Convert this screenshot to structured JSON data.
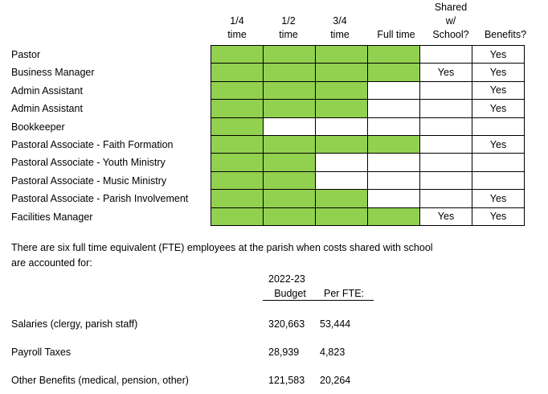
{
  "columns": [
    {
      "line1": "",
      "line2": "1/4",
      "line3": "time"
    },
    {
      "line1": "",
      "line2": "1/2",
      "line3": "time"
    },
    {
      "line1": "",
      "line2": "3/4",
      "line3": "time"
    },
    {
      "line1": "",
      "line2": "",
      "line3": "Full time"
    },
    {
      "line1": "Shared",
      "line2": "w/",
      "line3": "School?"
    },
    {
      "line1": "",
      "line2": "",
      "line3": "Benefits?"
    }
  ],
  "rows": [
    {
      "role": "Pastor",
      "fill": [
        1,
        1,
        1,
        1,
        0,
        0
      ],
      "shared": "",
      "benefits": "Yes"
    },
    {
      "role": "Business Manager",
      "fill": [
        1,
        1,
        1,
        1,
        0,
        0
      ],
      "shared": "Yes",
      "benefits": "Yes"
    },
    {
      "role": "Admin Assistant",
      "fill": [
        1,
        1,
        1,
        0,
        0,
        0
      ],
      "shared": "",
      "benefits": "Yes"
    },
    {
      "role": "Admin Assistant",
      "fill": [
        1,
        1,
        1,
        0,
        0,
        0
      ],
      "shared": "",
      "benefits": "Yes"
    },
    {
      "role": "Bookkeeper",
      "fill": [
        1,
        0,
        0,
        0,
        0,
        0
      ],
      "shared": "",
      "benefits": ""
    },
    {
      "role": "Pastoral Associate - Faith Formation",
      "fill": [
        1,
        1,
        1,
        1,
        0,
        0
      ],
      "shared": "",
      "benefits": "Yes"
    },
    {
      "role": "Pastoral Associate - Youth Ministry",
      "fill": [
        1,
        1,
        0,
        0,
        0,
        0
      ],
      "shared": "",
      "benefits": ""
    },
    {
      "role": "Pastoral Associate - Music Ministry",
      "fill": [
        1,
        1,
        0,
        0,
        0,
        0
      ],
      "shared": "",
      "benefits": ""
    },
    {
      "role": "Pastoral Associate - Parish Involvement",
      "fill": [
        1,
        1,
        1,
        0,
        0,
        0
      ],
      "shared": "",
      "benefits": "Yes"
    },
    {
      "role": "Facilities Manager",
      "fill": [
        1,
        1,
        1,
        1,
        0,
        0
      ],
      "shared": "Yes",
      "benefits": "Yes"
    }
  ],
  "fill_color": "#92d050",
  "fte_note": {
    "line1": "There are six full time equivalent (FTE) employees at the parish when costs shared with school",
    "line2": "are accounted for:"
  },
  "budget": {
    "header_year": "2022-23",
    "header_budget": "Budget",
    "header_per_fte": "Per FTE:",
    "items": [
      {
        "label": "Salaries (clergy, parish staff)",
        "budget": "320,663",
        "per_fte": "53,444"
      },
      {
        "label": "Payroll Taxes",
        "budget": "28,939",
        "per_fte": "4,823"
      },
      {
        "label": "Other Benefits (medical, pension, other)",
        "budget": "121,583",
        "per_fte": "20,264"
      }
    ]
  }
}
